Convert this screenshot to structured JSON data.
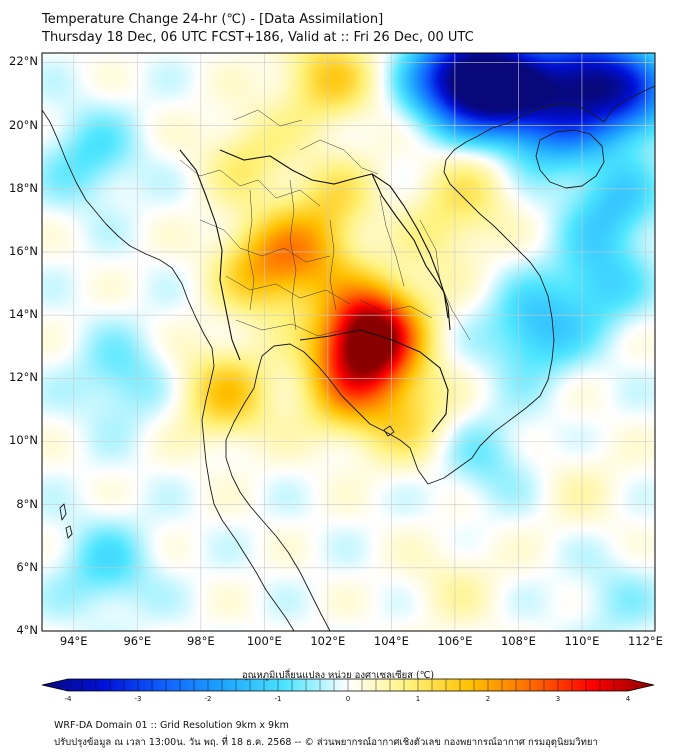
{
  "header": {
    "title_line1": "Temperature Change 24-hr (℃) - [Data Assimilation]",
    "title_line2": "Thursday 18 Dec, 06 UTC FCST+186, Valid at :: Fri 26 Dec, 00 UTC"
  },
  "map": {
    "lat_labels": [
      "22°N",
      "20°N",
      "18°N",
      "16°N",
      "14°N",
      "12°N",
      "10°N",
      "8°N",
      "6°N",
      "4°N"
    ],
    "lon_labels": [
      "94°E",
      "96°E",
      "98°E",
      "100°E",
      "102°E",
      "104°E",
      "106°E",
      "108°E",
      "110°E",
      "112°E"
    ],
    "lat_range": [
      4,
      22.3
    ],
    "lon_range": [
      93,
      112.3
    ],
    "field_hotspots": [
      {
        "lon": 103.2,
        "lat": 13.0,
        "value": 3.2
      },
      {
        "lon": 103.5,
        "lat": 13.8,
        "value": 1.8
      },
      {
        "lon": 100.0,
        "lat": 15.5,
        "value": 1.6
      },
      {
        "lon": 101.5,
        "lat": 16.0,
        "value": 1.3
      },
      {
        "lon": 102.5,
        "lat": 17.5,
        "value": 1.2
      },
      {
        "lon": 102.0,
        "lat": 21.5,
        "value": 1.3
      },
      {
        "lon": 98.8,
        "lat": 11.5,
        "value": 1.4
      },
      {
        "lon": 102.5,
        "lat": 11.5,
        "value": 1.2
      },
      {
        "lon": 104.5,
        "lat": 10.8,
        "value": 1.0
      },
      {
        "lon": 99.5,
        "lat": 19.0,
        "value": 0.8
      },
      {
        "lon": 105.5,
        "lat": 16.5,
        "value": 0.6
      },
      {
        "lon": 106.5,
        "lat": 18.0,
        "value": 0.7
      },
      {
        "lon": 107.5,
        "lat": 21.3,
        "value": -3.8
      },
      {
        "lon": 106.0,
        "lat": 21.5,
        "value": -3.0
      },
      {
        "lon": 110.0,
        "lat": 21.5,
        "value": -2.8
      },
      {
        "lon": 111.5,
        "lat": 21.0,
        "value": -2.2
      },
      {
        "lon": 109.0,
        "lat": 20.0,
        "value": -1.5
      },
      {
        "lon": 108.5,
        "lat": 13.5,
        "value": -1.2
      },
      {
        "lon": 110.5,
        "lat": 15.0,
        "value": -1.0
      },
      {
        "lon": 111.0,
        "lat": 17.5,
        "value": -1.1
      },
      {
        "lon": 94.5,
        "lat": 19.0,
        "value": -0.8
      },
      {
        "lon": 95.5,
        "lat": 12.0,
        "value": -0.7
      },
      {
        "lon": 95.0,
        "lat": 6.0,
        "value": -0.8
      },
      {
        "lon": 103.0,
        "lat": 17.0,
        "value": -0.6
      },
      {
        "lon": 107.0,
        "lat": 9.5,
        "value": -0.6
      },
      {
        "lon": 111.0,
        "lat": 5.0,
        "value": -0.4
      },
      {
        "lon": 106.0,
        "lat": 5.5,
        "value": 0.4
      },
      {
        "lon": 110.0,
        "lat": 8.5,
        "value": 0.3
      }
    ]
  },
  "colorbar": {
    "title": "อุณหภูมิเปลี่ยนแปลง หน่วย องศาเซลเซียส (℃)",
    "min": -4,
    "max": 4,
    "ticks": [
      "-4",
      "-3",
      "-2",
      "-1",
      "0",
      "1",
      "2",
      "3",
      "4"
    ],
    "colors": [
      "#08087a",
      "#0010d8",
      "#1060ff",
      "#1ea8ff",
      "#4ee6ff",
      "#ffffff",
      "#fff27a",
      "#ffc100",
      "#ff6a00",
      "#ff0000",
      "#8a0000"
    ]
  },
  "footer": {
    "line1": "WRF-DA Domain 01 :: Grid Resolution 9km x 9km",
    "line2": "ปรับปรุงข้อมูล ณ เวลา 13:00น. วัน พฤ. ที่ 18 ธ.ค. 2568 -- © ส่วนพยากรณ์อากาศเชิงตัวเลข กองพยากรณ์อากาศ กรมอุตุนิยมวิทยา"
  }
}
